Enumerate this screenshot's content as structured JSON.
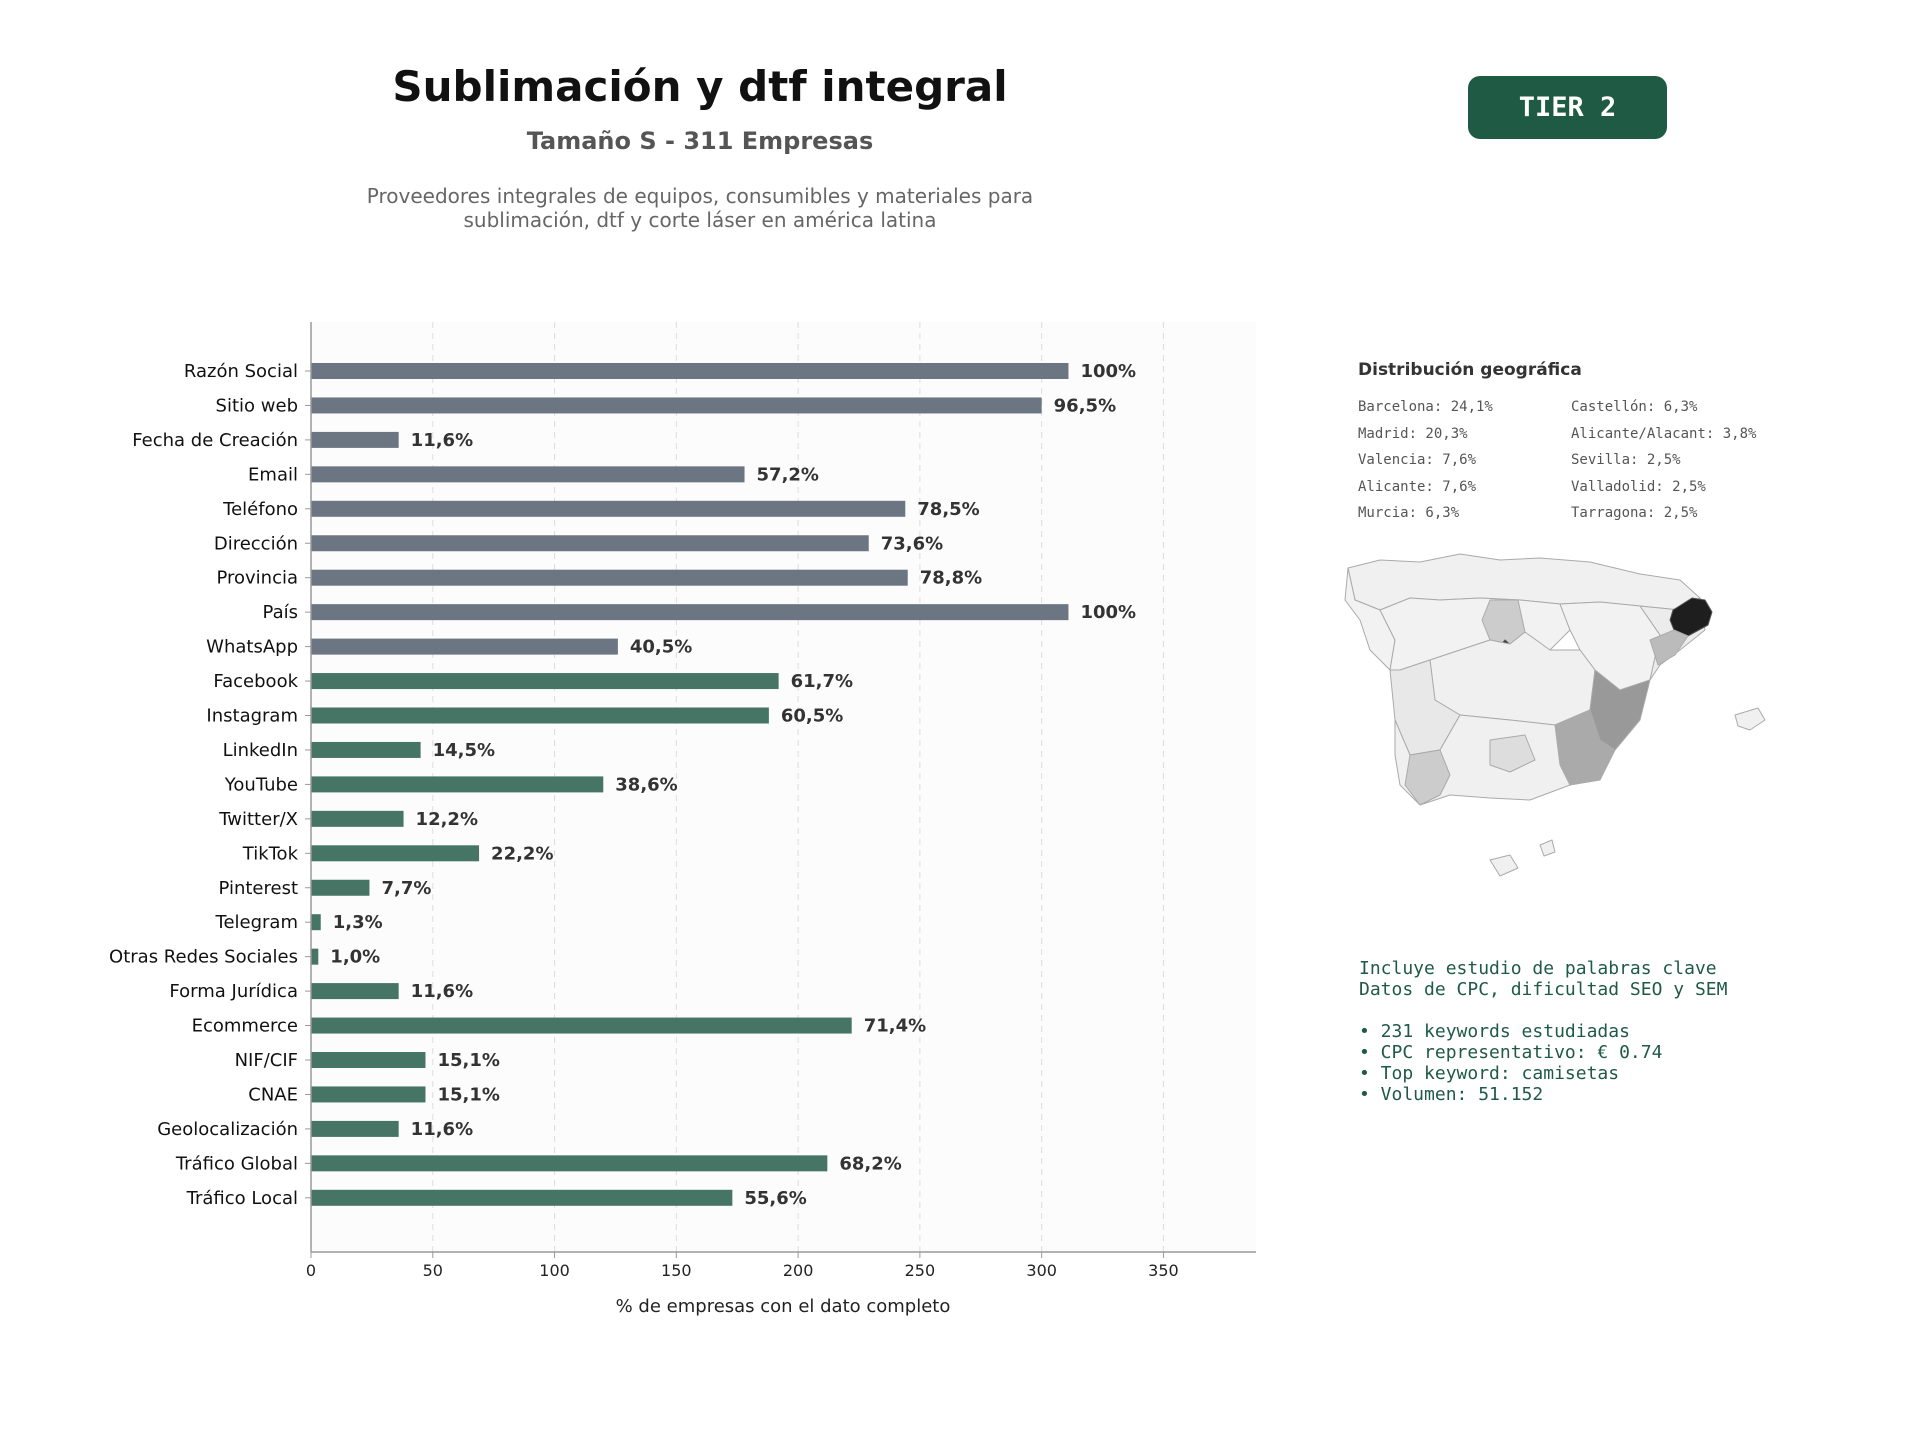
{
  "header": {
    "title": "Sublimación y dtf integral",
    "subtitle": "Tamaño S - 311 Empresas",
    "description_line1": "Proveedores integrales de equipos, consumibles y materiales para",
    "description_line2": "sublimación, dtf y corte láser en américa latina",
    "tier_badge": "TIER 2"
  },
  "colors": {
    "gray_bar": "#6c7682",
    "green_bar": "#477565",
    "badge": "#1f5a45",
    "map_dark": "#1e1e1e",
    "map_light": "#f0f0f0"
  },
  "chart_data": {
    "type": "bar",
    "orientation": "horizontal",
    "xlabel": "% de empresas con el dato completo",
    "ylabel": "",
    "xlim": [
      0,
      388
    ],
    "xticks": [
      0,
      50,
      100,
      150,
      200,
      250,
      300,
      350
    ],
    "grid": "vertical dashed",
    "categories": [
      "Razón Social",
      "Sitio web",
      "Fecha de Creación",
      "Email",
      "Teléfono",
      "Dirección",
      "Provincia",
      "País",
      "WhatsApp",
      "Facebook",
      "Instagram",
      "LinkedIn",
      "YouTube",
      "Twitter/X",
      "TikTok",
      "Pinterest",
      "Telegram",
      "Otras Redes Sociales",
      "Forma Jurídica",
      "Ecommerce",
      "NIF/CIF",
      "CNAE",
      "Geolocalización",
      "Tráfico Global",
      "Tráfico Local"
    ],
    "values": [
      311,
      300,
      36,
      178,
      244,
      229,
      245,
      311,
      126,
      192,
      188,
      45,
      120,
      38,
      69,
      24,
      4,
      3,
      36,
      222,
      47,
      47,
      36,
      212,
      173
    ],
    "labels": [
      "100%",
      "96,5%",
      "11,6%",
      "57,2%",
      "78,5%",
      "73,6%",
      "78,8%",
      "100%",
      "40,5%",
      "61,7%",
      "60,5%",
      "14,5%",
      "38,6%",
      "12,2%",
      "22,2%",
      "7,7%",
      "1,3%",
      "1,0%",
      "11,6%",
      "71,4%",
      "15,1%",
      "15,1%",
      "11,6%",
      "68,2%",
      "55,6%"
    ],
    "groups": [
      "gray",
      "gray",
      "gray",
      "gray",
      "gray",
      "gray",
      "gray",
      "gray",
      "gray",
      "green",
      "green",
      "green",
      "green",
      "green",
      "green",
      "green",
      "green",
      "green",
      "green",
      "green",
      "green",
      "green",
      "green",
      "green",
      "green"
    ]
  },
  "geo": {
    "title": "Distribución geográfica",
    "left_column": [
      "Barcelona: 24,1%",
      "Madrid: 20,3%",
      "Valencia: 7,6%",
      "Alicante: 7,6%",
      "Murcia: 6,3%"
    ],
    "right_column": [
      "Castellón: 6,3%",
      "Alicante/Alacant: 3,8%",
      "Sevilla: 2,5%",
      "Valladolid: 2,5%",
      "Tarragona: 2,5%"
    ]
  },
  "keywords": {
    "line1": "Incluye estudio de palabras clave",
    "line2": "Datos de CPC, dificultad SEO y SEM",
    "bullets": [
      "• 231 keywords estudiadas",
      "• CPC representativo: € 0.74",
      "• Top keyword: camisetas",
      "• Volumen: 51.152"
    ]
  }
}
